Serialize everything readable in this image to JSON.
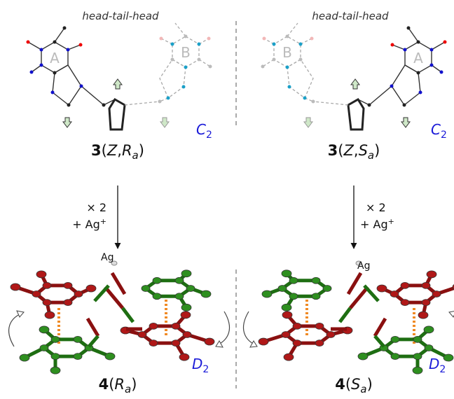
{
  "left": {
    "caption": "head-tail-head",
    "ring_labels": [
      "A",
      "B"
    ],
    "symmetry": [
      "C",
      "2"
    ],
    "compound": [
      "3",
      "(",
      "Z",
      ",",
      "R",
      "a",
      ")"
    ],
    "reagent": [
      "× 2",
      "+ Ag",
      "+"
    ],
    "metal": "Ag",
    "product_symmetry": [
      "D",
      "2"
    ],
    "product": [
      "4",
      "(",
      "R",
      "a",
      ")"
    ]
  },
  "right": {
    "caption": "head-tail-head",
    "ring_labels": [
      "A",
      "B"
    ],
    "symmetry": [
      "C",
      "2"
    ],
    "compound": [
      "3",
      "(",
      "Z",
      ",",
      "S",
      "a",
      ")"
    ],
    "reagent": [
      "× 2",
      "+ Ag",
      "+"
    ],
    "metal": "Ag",
    "product_symmetry": [
      "D",
      "2"
    ],
    "product": [
      "4",
      "(",
      "S",
      "a",
      ")"
    ]
  }
}
